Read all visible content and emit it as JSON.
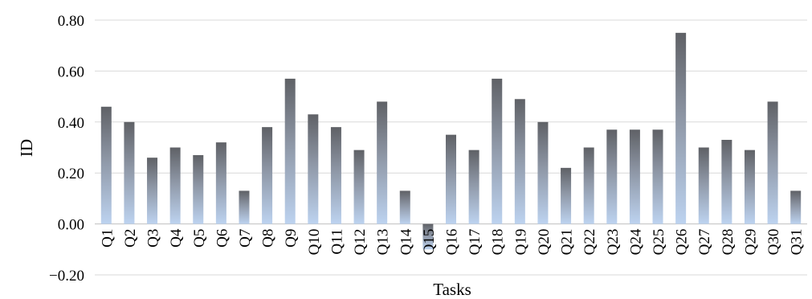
{
  "chart_data": {
    "type": "bar",
    "xlabel": "Tasks",
    "ylabel": "ID",
    "ylim": [
      -0.2,
      0.8
    ],
    "yticks": [
      "0.80",
      "0.60",
      "0.40",
      "0.20",
      "0.00",
      "−0.20"
    ],
    "ytick_values": [
      0.8,
      0.6,
      0.4,
      0.2,
      0.0,
      -0.2
    ],
    "grid": true,
    "legend": "none",
    "categories": [
      "Q1",
      "Q2",
      "Q3",
      "Q4",
      "Q5",
      "Q6",
      "Q7",
      "Q8",
      "Q9",
      "Q10",
      "Q11",
      "Q12",
      "Q13",
      "Q14",
      "Q15",
      "Q16",
      "Q17",
      "Q18",
      "Q19",
      "Q20",
      "Q21",
      "Q22",
      "Q23",
      "Q24",
      "Q25",
      "Q26",
      "Q27",
      "Q28",
      "Q29",
      "Q30",
      "Q31"
    ],
    "values": [
      0.46,
      0.4,
      0.26,
      0.3,
      0.27,
      0.32,
      0.13,
      0.38,
      0.57,
      0.43,
      0.38,
      0.29,
      0.48,
      0.13,
      -0.1,
      0.35,
      0.29,
      0.57,
      0.49,
      0.4,
      0.22,
      0.3,
      0.37,
      0.37,
      0.37,
      0.75,
      0.3,
      0.33,
      0.29,
      0.48,
      0.13
    ],
    "colors": {
      "bar_top": "#5f6166",
      "bar_mid": "#8e97a6",
      "bar_bottom": "#bdd3f0",
      "grid": "#d9d9d9"
    }
  }
}
